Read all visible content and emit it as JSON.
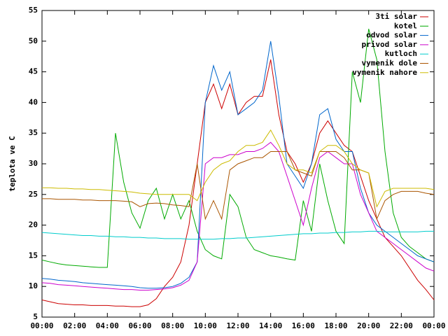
{
  "chart_data": {
    "type": "line",
    "y_label": "teplota ve C",
    "x": [
      0,
      0.5,
      1,
      1.5,
      2,
      2.5,
      3,
      3.5,
      4,
      4.5,
      5,
      5.5,
      6,
      6.5,
      7,
      7.5,
      8,
      8.5,
      9,
      9.5,
      10,
      10.5,
      11,
      11.5,
      12,
      12.5,
      13,
      13.5,
      14,
      14.5,
      15,
      15.5,
      16,
      16.5,
      17,
      17.5,
      18,
      18.5,
      19,
      19.5,
      20,
      20.5,
      21,
      21.5,
      22,
      22.5,
      23,
      23.5,
      24
    ],
    "xlim": [
      0,
      24
    ],
    "xticks": [
      {
        "value": 0,
        "label": "00:00"
      },
      {
        "value": 2,
        "label": "02:00"
      },
      {
        "value": 4,
        "label": "04:00"
      },
      {
        "value": 6,
        "label": "06:00"
      },
      {
        "value": 8,
        "label": "08:00"
      },
      {
        "value": 10,
        "label": "10:00"
      },
      {
        "value": 12,
        "label": "12:00"
      },
      {
        "value": 14,
        "label": "14:00"
      },
      {
        "value": 16,
        "label": "16:00"
      },
      {
        "value": 18,
        "label": "18:00"
      },
      {
        "value": 20,
        "label": "20:00"
      },
      {
        "value": 22,
        "label": "22:00"
      },
      {
        "value": 24,
        "label": "00:00"
      }
    ],
    "ylim": [
      5,
      55
    ],
    "yticks": [
      5,
      10,
      15,
      20,
      25,
      30,
      35,
      40,
      45,
      50,
      55
    ],
    "legend": "top-right",
    "series": [
      {
        "name": "3ti solar",
        "color": "#cc0000",
        "values": [
          7.8,
          7.5,
          7.2,
          7.1,
          7.0,
          7.0,
          6.9,
          6.9,
          6.9,
          6.8,
          6.8,
          6.7,
          6.7,
          7.0,
          8.0,
          10,
          11.5,
          14,
          20,
          30,
          40,
          43,
          39,
          43,
          38,
          40,
          41,
          41,
          47,
          38,
          32,
          30,
          27,
          30,
          35,
          37,
          35,
          33,
          32,
          28,
          24,
          21,
          18,
          16.5,
          15,
          13,
          11,
          9.5,
          7.8
        ]
      },
      {
        "name": "kotel",
        "color": "#00aa00",
        "values": [
          14.3,
          14,
          13.7,
          13.5,
          13.4,
          13.3,
          13.2,
          13.1,
          13.1,
          35,
          27,
          22,
          19.5,
          24,
          26,
          21,
          25,
          21,
          24,
          19,
          16,
          15,
          14.5,
          25,
          23,
          18,
          16,
          15.5,
          15,
          14.8,
          14.5,
          14.3,
          24,
          19,
          30,
          24,
          19,
          17,
          45,
          40,
          52,
          47,
          32,
          22,
          18,
          16.5,
          15.5,
          14.5,
          14
        ]
      },
      {
        "name": "odvod solar",
        "color": "#0066cc",
        "values": [
          11.3,
          11.2,
          11,
          10.9,
          10.8,
          10.6,
          10.5,
          10.4,
          10.3,
          10.2,
          10.1,
          10,
          9.8,
          9.7,
          9.7,
          9.8,
          10,
          10.5,
          11.5,
          14,
          40,
          46,
          42,
          45,
          38,
          39,
          40,
          42,
          50,
          41,
          30,
          28,
          26,
          30,
          38,
          39,
          34,
          32,
          32,
          26,
          22,
          20,
          19,
          18,
          17,
          16,
          15,
          14.5,
          14
        ]
      },
      {
        "name": "privod solar",
        "color": "#cc00cc",
        "values": [
          10.6,
          10.5,
          10.3,
          10.2,
          10.1,
          10,
          9.9,
          9.8,
          9.7,
          9.6,
          9.5,
          9.5,
          9.4,
          9.4,
          9.5,
          9.6,
          9.8,
          10.2,
          11,
          14,
          30,
          31,
          31,
          31.5,
          31.5,
          32,
          32,
          32.5,
          33.5,
          32,
          28,
          24,
          20,
          26,
          31,
          32,
          31,
          30,
          30,
          25,
          22,
          19,
          18,
          17,
          16,
          15,
          14,
          13,
          12.5
        ]
      },
      {
        "name": "kutloch",
        "color": "#00cccc",
        "values": [
          18.8,
          18.7,
          18.6,
          18.5,
          18.4,
          18.3,
          18.3,
          18.2,
          18.2,
          18.1,
          18.1,
          18,
          18,
          17.9,
          17.9,
          17.8,
          17.8,
          17.8,
          17.7,
          17.7,
          17.7,
          17.7,
          17.8,
          17.8,
          17.9,
          17.9,
          18,
          18.1,
          18.2,
          18.3,
          18.4,
          18.5,
          18.6,
          18.6,
          18.7,
          18.7,
          18.8,
          18.8,
          18.9,
          18.9,
          19,
          19,
          18.9,
          18.9,
          18.9,
          18.9,
          18.9,
          19,
          19
        ]
      },
      {
        "name": "vymenik dole",
        "color": "#aa5500",
        "values": [
          24.3,
          24.3,
          24.2,
          24.2,
          24.2,
          24.1,
          24.1,
          24,
          24,
          24,
          23.9,
          23.8,
          23,
          23.5,
          23.6,
          23.5,
          23.3,
          23.2,
          23,
          30,
          21,
          24,
          21,
          29,
          30,
          30.5,
          31,
          31,
          32,
          32,
          32,
          29,
          28.5,
          28,
          32,
          32,
          32,
          31,
          29,
          29,
          28.5,
          21,
          24,
          25,
          25.5,
          25.5,
          25.5,
          25.2,
          25
        ]
      },
      {
        "name": "vymenik nahore",
        "color": "#ccbb00",
        "values": [
          26.1,
          26.1,
          26,
          26,
          25.9,
          25.9,
          25.8,
          25.8,
          25.7,
          25.6,
          25.5,
          25.4,
          25.2,
          25.1,
          25,
          25,
          25,
          25,
          25,
          24,
          27,
          29,
          30,
          30.5,
          32,
          33,
          33,
          33.5,
          35.5,
          33,
          30,
          29,
          29,
          28.5,
          32,
          33,
          33,
          32,
          30,
          29,
          28.5,
          23,
          25.5,
          26,
          26,
          26,
          26,
          26,
          25.8
        ]
      }
    ]
  }
}
